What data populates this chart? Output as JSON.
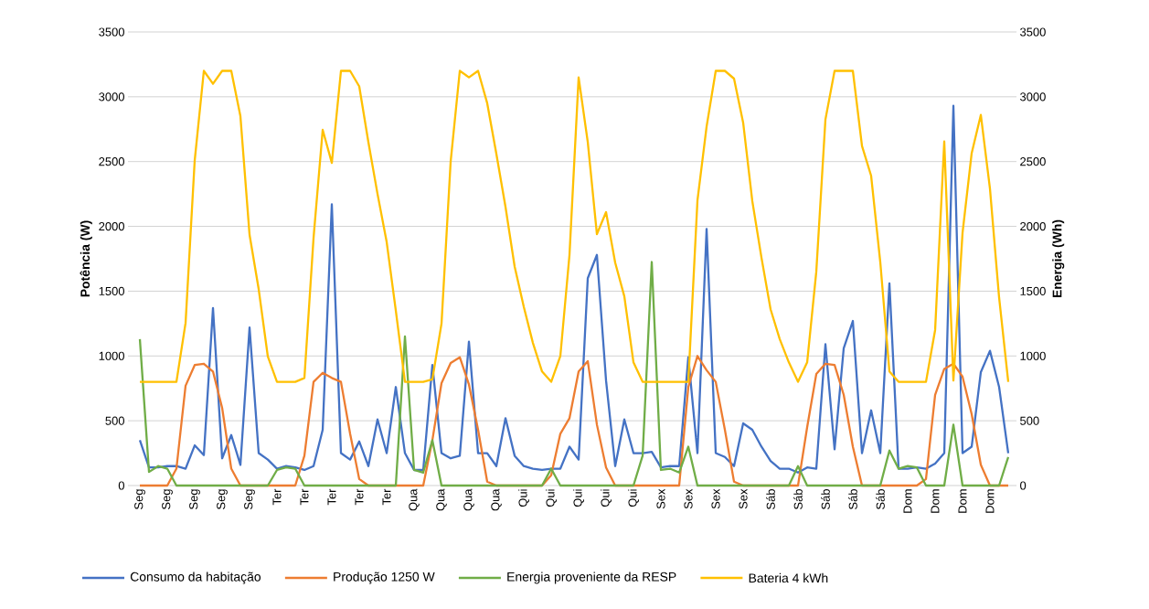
{
  "chart_data": {
    "type": "line",
    "ylabel": "Potência (W)",
    "y2label": "Energia (Wh)",
    "categories": [
      "Seg",
      null,
      null,
      "Seg",
      null,
      null,
      "Seg",
      null,
      null,
      "Seg",
      null,
      null,
      "Seg",
      null,
      null,
      "Ter",
      null,
      null,
      "Ter",
      null,
      null,
      "Ter",
      null,
      null,
      "Ter",
      null,
      null,
      "Ter",
      null,
      null,
      "Qua",
      null,
      null,
      "Qua",
      null,
      null,
      "Qua",
      null,
      null,
      "Qua",
      null,
      null,
      "Qui",
      null,
      null,
      "Qui",
      null,
      null,
      "Qui",
      null,
      null,
      "Qui",
      null,
      null,
      "Qui",
      null,
      null,
      "Sex",
      null,
      null,
      "Sex",
      null,
      null,
      "Sex",
      null,
      null,
      "Sex",
      null,
      null,
      "Sáb",
      null,
      null,
      "Sáb",
      null,
      null,
      "Sáb",
      null,
      null,
      "Sáb",
      null,
      null,
      "Sáb",
      null,
      null,
      "Dom",
      null,
      null,
      "Dom",
      null,
      null,
      "Dom",
      null,
      null,
      "Dom",
      null,
      null
    ],
    "series": [
      {
        "name": "Consumo da habitação",
        "color": "#4472c4",
        "values": [
          350,
          140,
          140,
          150,
          150,
          130,
          310,
          235,
          1370,
          210,
          390,
          160,
          1220,
          250,
          200,
          130,
          150,
          140,
          120,
          150,
          430,
          2170,
          250,
          200,
          340,
          150,
          510,
          250,
          760,
          250,
          120,
          120,
          930,
          250,
          210,
          230,
          1110,
          250,
          250,
          150,
          520,
          230,
          150,
          130,
          120,
          130,
          130,
          300,
          200,
          1600,
          1780,
          810,
          150,
          510,
          250,
          250,
          260,
          140,
          150,
          150,
          990,
          250,
          1980,
          250,
          220,
          150,
          480,
          430,
          300,
          190,
          130,
          130,
          100,
          140,
          130,
          1090,
          280,
          1060,
          1270,
          250,
          580,
          250,
          1560,
          130,
          130,
          140,
          130,
          170,
          250,
          2930,
          250,
          300,
          875,
          1040,
          760,
          250
        ]
      },
      {
        "name": "Produção 1250 W",
        "color": "#ed7d31",
        "values": [
          0,
          0,
          0,
          0,
          130,
          770,
          930,
          940,
          880,
          600,
          130,
          0,
          0,
          0,
          0,
          0,
          0,
          0,
          230,
          800,
          870,
          830,
          800,
          400,
          50,
          0,
          0,
          0,
          0,
          0,
          0,
          0,
          350,
          790,
          945,
          990,
          780,
          430,
          30,
          0,
          0,
          0,
          0,
          0,
          0,
          80,
          400,
          520,
          880,
          960,
          470,
          140,
          0,
          0,
          0,
          0,
          0,
          0,
          0,
          0,
          760,
          1000,
          890,
          800,
          430,
          30,
          0,
          0,
          0,
          0,
          0,
          0,
          0,
          450,
          860,
          940,
          930,
          700,
          300,
          0,
          0,
          0,
          0,
          0,
          0,
          0,
          50,
          700,
          900,
          940,
          840,
          550,
          160,
          0,
          0,
          0
        ]
      },
      {
        "name": "Energia proveniente da RESP",
        "color": "#70ad47",
        "values": [
          1130,
          105,
          150,
          130,
          0,
          0,
          0,
          0,
          0,
          0,
          0,
          0,
          0,
          0,
          0,
          120,
          140,
          130,
          0,
          0,
          0,
          0,
          0,
          0,
          0,
          0,
          0,
          0,
          0,
          1150,
          120,
          100,
          350,
          0,
          0,
          0,
          0,
          0,
          0,
          0,
          0,
          0,
          0,
          0,
          0,
          130,
          0,
          0,
          0,
          0,
          0,
          0,
          0,
          0,
          0,
          230,
          1725,
          120,
          130,
          100,
          300,
          0,
          0,
          0,
          0,
          0,
          0,
          0,
          0,
          0,
          0,
          0,
          150,
          0,
          0,
          0,
          0,
          0,
          0,
          0,
          0,
          0,
          270,
          130,
          150,
          140,
          0,
          0,
          0,
          470,
          0,
          0,
          0,
          0,
          0,
          220
        ]
      },
      {
        "name": "Bateria 4 kWh",
        "color": "#ffc000",
        "axis": "y2",
        "values": [
          800,
          800,
          800,
          800,
          800,
          1255,
          2510,
          3200,
          3100,
          3200,
          3200,
          2850,
          1935,
          1515,
          995,
          800,
          800,
          800,
          830,
          1910,
          2745,
          2490,
          3200,
          3200,
          3080,
          2650,
          2250,
          1880,
          1350,
          800,
          800,
          800,
          820,
          1250,
          2500,
          3200,
          3150,
          3200,
          2950,
          2560,
          2150,
          1690,
          1380,
          1100,
          880,
          800,
          1000,
          1780,
          3150,
          2650,
          1940,
          2110,
          1720,
          1460,
          950,
          800,
          800,
          800,
          800,
          800,
          800,
          2200,
          2770,
          3200,
          3200,
          3140,
          2800,
          2195,
          1760,
          1360,
          1130,
          950,
          800,
          950,
          1650,
          2825,
          3200,
          3200,
          3200,
          2620,
          2390,
          1725,
          880,
          800,
          800,
          800,
          800,
          1200,
          2655,
          810,
          1950,
          2565,
          2860,
          2290,
          1450,
          800
        ]
      }
    ],
    "ylim": [
      0,
      3500
    ],
    "yticks": [
      0,
      500,
      1000,
      1500,
      2000,
      2500,
      3000,
      3500
    ],
    "y2lim": [
      0,
      3500
    ],
    "y2ticks": [
      0,
      500,
      1000,
      1500,
      2000,
      2500,
      3000,
      3500
    ],
    "grid": "y",
    "legend": "bottom",
    "marker": "none",
    "line_style": "solid"
  }
}
